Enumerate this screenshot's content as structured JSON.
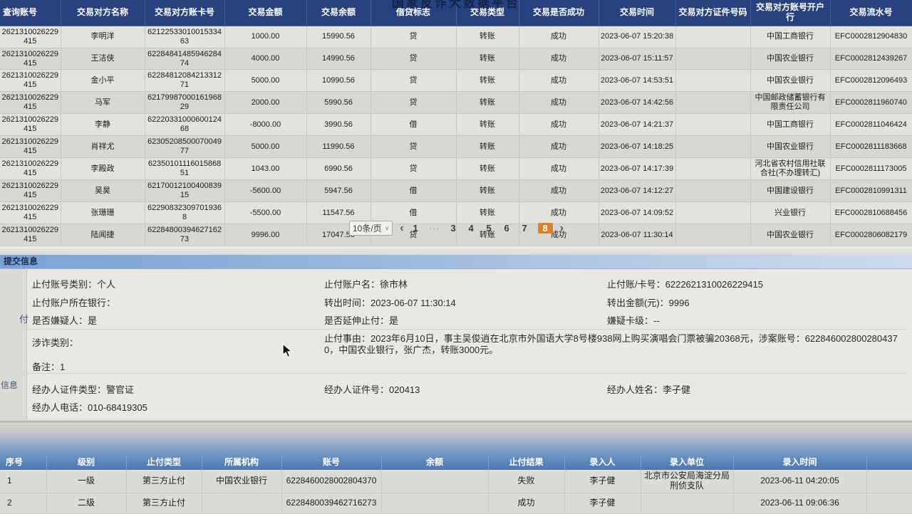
{
  "platform_title": "国家反诈大数据平台",
  "transactions_table": {
    "headers": [
      "查询账号",
      "交易对方名称",
      "交易对方账卡号",
      "交易金额",
      "交易余额",
      "借贷标志",
      "交易类型",
      "交易是否成功",
      "交易时间",
      "交易对方证件号码",
      "交易对方账号开户行",
      "交易流水号"
    ],
    "rows": [
      [
        "2621310026229415",
        "李明洋",
        "6212253301001533463",
        "1000.00",
        "15990.56",
        "贷",
        "转账",
        "成功",
        "2023-06-07 15:20:38",
        "",
        "中国工商银行",
        "EFC0002812904830"
      ],
      [
        "2621310026229415",
        "王洁侠",
        "6228484148594628474",
        "4000.00",
        "14990.56",
        "贷",
        "转账",
        "成功",
        "2023-06-07 15:11:57",
        "",
        "中国农业银行",
        "EFC0002812439267"
      ],
      [
        "2621310026229415",
        "金小平",
        "6228481208421331271",
        "5000.00",
        "10990.56",
        "贷",
        "转账",
        "成功",
        "2023-06-07 14:53:51",
        "",
        "中国农业银行",
        "EFC0002812096493"
      ],
      [
        "2621310026229415",
        "马军",
        "6217998700016196829",
        "2000.00",
        "5990.56",
        "贷",
        "转账",
        "成功",
        "2023-06-07 14:42:56",
        "",
        "中国邮政储蓄银行有限责任公司",
        "EFC0002811960740"
      ],
      [
        "2621310026229415",
        "李静",
        "6222033100060012468",
        "-8000.00",
        "3990.56",
        "借",
        "转账",
        "成功",
        "2023-06-07 14:21:37",
        "",
        "中国工商银行",
        "EFC0002811046424"
      ],
      [
        "2621310026229415",
        "肖祥尤",
        "6230520850007004977",
        "5000.00",
        "11990.56",
        "贷",
        "转账",
        "成功",
        "2023-06-07 14:18:25",
        "",
        "中国农业银行",
        "EFC0002811183668"
      ],
      [
        "2621310026229415",
        "李殿政",
        "6235010111601586851",
        "1043.00",
        "6990.56",
        "贷",
        "转账",
        "成功",
        "2023-06-07 14:17:39",
        "",
        "河北省农村信用社联合社(不办理转汇)",
        "EFC0002811173005"
      ],
      [
        "2621310026229415",
        "吴昊",
        "6217001210040083915",
        "-5600.00",
        "5947.56",
        "借",
        "转账",
        "成功",
        "2023-06-07 14:12:27",
        "",
        "中国建设银行",
        "EFC0002810991311"
      ],
      [
        "2621310026229415",
        "张珊珊",
        "622908323097019368",
        "-5500.00",
        "11547.56",
        "借",
        "转账",
        "成功",
        "2023-06-07 14:09:52",
        "",
        "兴业银行",
        "EFC0002810688456"
      ],
      [
        "2621310026229415",
        "陆闻捷",
        "6228480039462716273",
        "9996.00",
        "17047.56",
        "贷",
        "转账",
        "成功",
        "2023-06-07 11:30:14",
        "",
        "中国农业银行",
        "EFC0002806082179"
      ]
    ]
  },
  "pagination": {
    "page_size_label": "10条/页",
    "prev": "‹",
    "next": "›",
    "pages": [
      "1",
      "···",
      "3",
      "4",
      "5",
      "6",
      "7",
      "8"
    ],
    "active": "8"
  },
  "submit_info": {
    "title": "提交信息",
    "fields": {
      "account_category": {
        "label": "止付账号类别：",
        "value": "个人"
      },
      "account_name": {
        "label": "止付账户名：",
        "value": "徐市林"
      },
      "card_no": {
        "label": "止付账/卡号：",
        "value": "6222621310026229415"
      },
      "account_bank": {
        "label": "止付账户所在银行：",
        "value": ""
      },
      "transfer_time": {
        "label": "转出时间：",
        "value": "2023-06-07 11:30:14"
      },
      "transfer_amount": {
        "label": "转出金额(元)：",
        "value": "9996"
      },
      "is_suspect": {
        "label": "是否嫌疑人：",
        "value": "是"
      },
      "extend_stop": {
        "label": "是否延伸止付：",
        "value": "是"
      },
      "suspect_card_level": {
        "label": "嫌疑卡级：",
        "value": "--"
      },
      "fraud_category": {
        "label": "涉诈类别：",
        "value": ""
      },
      "stop_reason": {
        "label": "止付事由：",
        "value": "2023年6月10日，事主吴俊逍在北京市外国语大学8号楼938网上购买演唱会门票被骗20368元，涉案账号：6228460028002804370，中国农业银行，张广杰，转账3000元。"
      },
      "remark": {
        "label": "备注：",
        "value": "1"
      },
      "handler_cert_type": {
        "label": "经办人证件类型：",
        "value": "警官证"
      },
      "handler_cert_no": {
        "label": "经办人证件号：",
        "value": "020413"
      },
      "handler_name": {
        "label": "经办人姓名：",
        "value": "李子健"
      },
      "handler_phone": {
        "label": "经办人电话：",
        "value": "010-68419305"
      }
    }
  },
  "stop_payment_table": {
    "headers": [
      "序号",
      "级别",
      "止付类型",
      "所属机构",
      "账号",
      "余额",
      "止付结果",
      "录入人",
      "录入单位",
      "录入时间"
    ],
    "rows": [
      [
        "1",
        "一级",
        "第三方止付",
        "中国农业银行",
        "6228460028002804370",
        "",
        "失败",
        "李子健",
        "北京市公安局海淀分局刑侦支队",
        "2023-06-11 04:20:05"
      ],
      [
        "2",
        "二级",
        "第三方止付",
        "",
        "6228480039462716273",
        "",
        "成功",
        "李子健",
        "",
        "2023-06-11 09:06:36"
      ]
    ]
  },
  "side_labels": {
    "stop": "付",
    "info": "信息"
  }
}
